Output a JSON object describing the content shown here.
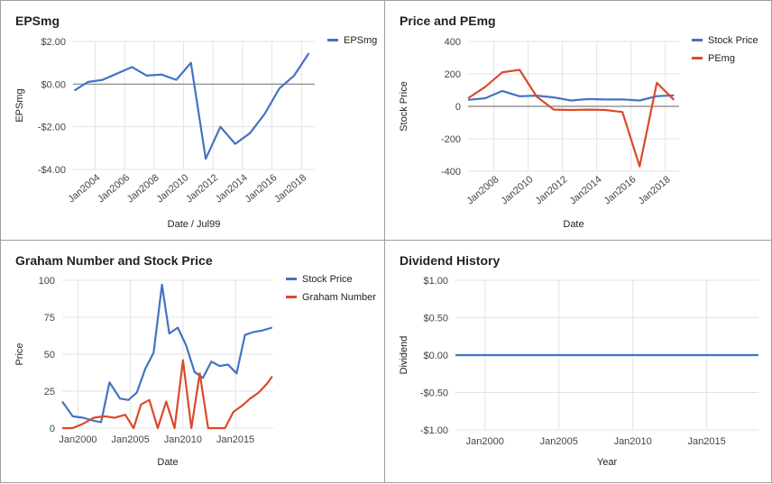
{
  "chart_data": [
    {
      "type": "line",
      "title": "EPSmg",
      "xlabel": "Date / Jul99",
      "ylabel": "EPSmg",
      "ylim": [
        -4,
        2
      ],
      "yticks": [
        2,
        0,
        -2,
        -4
      ],
      "ytick_labels": [
        "$2.00",
        "$0.00",
        "-$2.00",
        "-$4.00"
      ],
      "xlim": [
        2002.5,
        2018.9
      ],
      "xticks": [
        2004,
        2006,
        2008,
        2010,
        2012,
        2014,
        2016,
        2018
      ],
      "xtick_labels": [
        "Jan2004",
        "Jan2006",
        "Jan2008",
        "Jan2010",
        "Jan2012",
        "Jan2014",
        "Jan2016",
        "Jan2018"
      ],
      "xtick_rotate": true,
      "grid": true,
      "baseline": 0,
      "legend_position": "right",
      "series": [
        {
          "name": "EPSmg",
          "color": "#4472c4",
          "x": [
            2002.6,
            2003.5,
            2004.5,
            2005.5,
            2006.5,
            2007.5,
            2008.5,
            2009.5,
            2010.5,
            2011.5,
            2012.5,
            2013.5,
            2014.5,
            2015.5,
            2016.5,
            2017.5,
            2018.5
          ],
          "values": [
            -0.3,
            0.1,
            0.2,
            0.5,
            0.8,
            0.4,
            0.45,
            0.2,
            1.0,
            -3.5,
            -2.0,
            -2.8,
            -2.3,
            -1.4,
            -0.2,
            0.4,
            1.45
          ]
        }
      ]
    },
    {
      "type": "line",
      "title": "Price and PEmg",
      "xlabel": "Date",
      "ylabel": "Stock Price",
      "ylim": [
        -400,
        400
      ],
      "yticks": [
        400,
        200,
        0,
        -200,
        -400
      ],
      "ytick_labels": [
        "400",
        "200",
        "0",
        "-200",
        "-400"
      ],
      "xlim": [
        2006.5,
        2018.8
      ],
      "xticks": [
        2008,
        2010,
        2012,
        2014,
        2016,
        2018
      ],
      "xtick_labels": [
        "Jan2008",
        "Jan2010",
        "Jan2012",
        "Jan2014",
        "Jan2016",
        "Jan2018"
      ],
      "xtick_rotate": true,
      "grid": true,
      "baseline": 0,
      "legend_position": "right",
      "series": [
        {
          "name": "Stock Price",
          "color": "#4472c4",
          "x": [
            2006.5,
            2007.5,
            2008.5,
            2009.5,
            2010.5,
            2011.5,
            2012.5,
            2013.5,
            2014.5,
            2015.5,
            2016.5,
            2017.5,
            2018.5
          ],
          "values": [
            40,
            50,
            95,
            62,
            66,
            55,
            36,
            45,
            42,
            43,
            36,
            63,
            68
          ]
        },
        {
          "name": "PEmg",
          "color": "#db4a2b",
          "x": [
            2006.5,
            2007.5,
            2008.5,
            2009.5,
            2010.5,
            2011.5,
            2012.5,
            2013.5,
            2014.5,
            2015.5,
            2016.5,
            2017.5,
            2018.5
          ],
          "values": [
            50,
            120,
            210,
            225,
            60,
            -20,
            -22,
            -20,
            -22,
            -35,
            -370,
            145,
            40
          ]
        }
      ]
    },
    {
      "type": "line",
      "title": "Graham Number and Stock Price",
      "xlabel": "Date",
      "ylabel": "Price",
      "ylim": [
        0,
        100
      ],
      "yticks": [
        100,
        75,
        50,
        25,
        0
      ],
      "ytick_labels": [
        "100",
        "75",
        "50",
        "25",
        "0"
      ],
      "xlim": [
        1998.5,
        2018.6
      ],
      "xticks": [
        2000,
        2005,
        2010,
        2015
      ],
      "xtick_labels": [
        "Jan2000",
        "Jan2005",
        "Jan2010",
        "Jan2015"
      ],
      "xtick_rotate": false,
      "grid": true,
      "legend_position": "right",
      "series": [
        {
          "name": "Stock Price",
          "color": "#4472c4",
          "x": [
            1998.5,
            1999.5,
            2000.5,
            2001.5,
            2002.2,
            2003.0,
            2004.0,
            2004.8,
            2005.6,
            2006.4,
            2007.2,
            2008.0,
            2008.7,
            2009.5,
            2010.3,
            2011.1,
            2011.9,
            2012.7,
            2013.5,
            2014.3,
            2015.1,
            2015.9,
            2016.7,
            2017.5,
            2018.5
          ],
          "values": [
            18,
            8,
            7,
            5,
            4,
            31,
            20,
            19,
            24,
            40,
            51,
            97,
            64,
            68,
            56,
            38,
            34,
            45,
            42,
            43,
            37,
            63,
            65,
            66,
            68
          ]
        },
        {
          "name": "Graham Number",
          "color": "#db4a2b",
          "x": [
            1998.5,
            1999.5,
            2000.5,
            2001.5,
            2002.5,
            2003.5,
            2004.5,
            2005.3,
            2006.0,
            2006.8,
            2007.6,
            2008.4,
            2009.2,
            2010.0,
            2010.8,
            2011.6,
            2012.4,
            2013.2,
            2014.0,
            2014.8,
            2015.6,
            2016.4,
            2017.2,
            2018.0,
            2018.5
          ],
          "values": [
            0,
            0,
            3,
            7,
            8,
            7,
            9,
            0,
            16,
            19,
            0,
            18,
            0,
            46,
            0,
            37,
            0,
            0,
            0,
            11,
            15,
            20,
            24,
            30,
            35
          ]
        }
      ]
    },
    {
      "type": "line",
      "title": "Dividend History",
      "xlabel": "Year",
      "ylabel": "Dividend",
      "ylim": [
        -1,
        1
      ],
      "yticks": [
        1,
        0.5,
        0,
        -0.5,
        -1
      ],
      "ytick_labels": [
        "$1.00",
        "$0.50",
        "$0.00",
        "-$0.50",
        "-$1.00"
      ],
      "xlim": [
        1998,
        2018.5
      ],
      "xticks": [
        2000,
        2005,
        2010,
        2015
      ],
      "xtick_labels": [
        "Jan2000",
        "Jan2005",
        "Jan2010",
        "Jan2015"
      ],
      "xtick_rotate": false,
      "grid": true,
      "legend_position": "none",
      "series": [
        {
          "name": "",
          "color": "#4472c4",
          "x": [
            1998,
            2018.5
          ],
          "values": [
            0,
            0
          ]
        }
      ]
    }
  ]
}
